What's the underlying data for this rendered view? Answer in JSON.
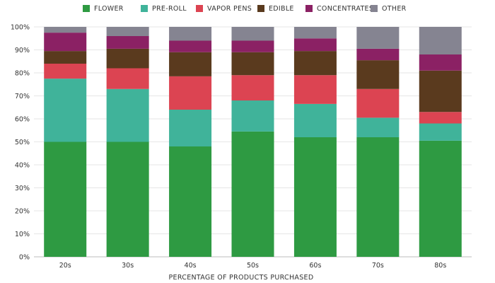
{
  "chart_data": {
    "type": "bar",
    "stacked": true,
    "title": "",
    "xlabel": "PERCENTAGE OF PRODUCTS PURCHASED",
    "ylabel": "",
    "ylim": [
      0,
      100
    ],
    "y_ticks": [
      "0%",
      "10%",
      "20%",
      "30%",
      "40%",
      "50%",
      "60%",
      "70%",
      "80%",
      "90%",
      "100%"
    ],
    "grid": true,
    "legend_position": "top",
    "categories": [
      "20s",
      "30s",
      "40s",
      "50s",
      "60s",
      "70s",
      "80s"
    ],
    "series": [
      {
        "name": "FLOWER",
        "color": "#2e9a42",
        "values": [
          50,
          50,
          48,
          54.5,
          52,
          52,
          50.5
        ]
      },
      {
        "name": "PRE-ROLL",
        "color": "#40b39a",
        "values": [
          27.5,
          23,
          16,
          13.5,
          14.5,
          8.5,
          7.5
        ]
      },
      {
        "name": "VAPOR PENS",
        "color": "#dc4452",
        "values": [
          6.5,
          9,
          14.5,
          11,
          12.5,
          12.5,
          5
        ]
      },
      {
        "name": "EDIBLE",
        "color": "#5a3a1e",
        "values": [
          5.5,
          8.5,
          10.5,
          10,
          10.5,
          12.5,
          18
        ]
      },
      {
        "name": "CONCENTRATES",
        "color": "#8b2164",
        "values": [
          8,
          5.5,
          5,
          5,
          5.5,
          5,
          7
        ]
      },
      {
        "name": "OTHER",
        "color": "#858491",
        "values": [
          2.5,
          4,
          6,
          6,
          5,
          9.5,
          12
        ]
      }
    ]
  }
}
